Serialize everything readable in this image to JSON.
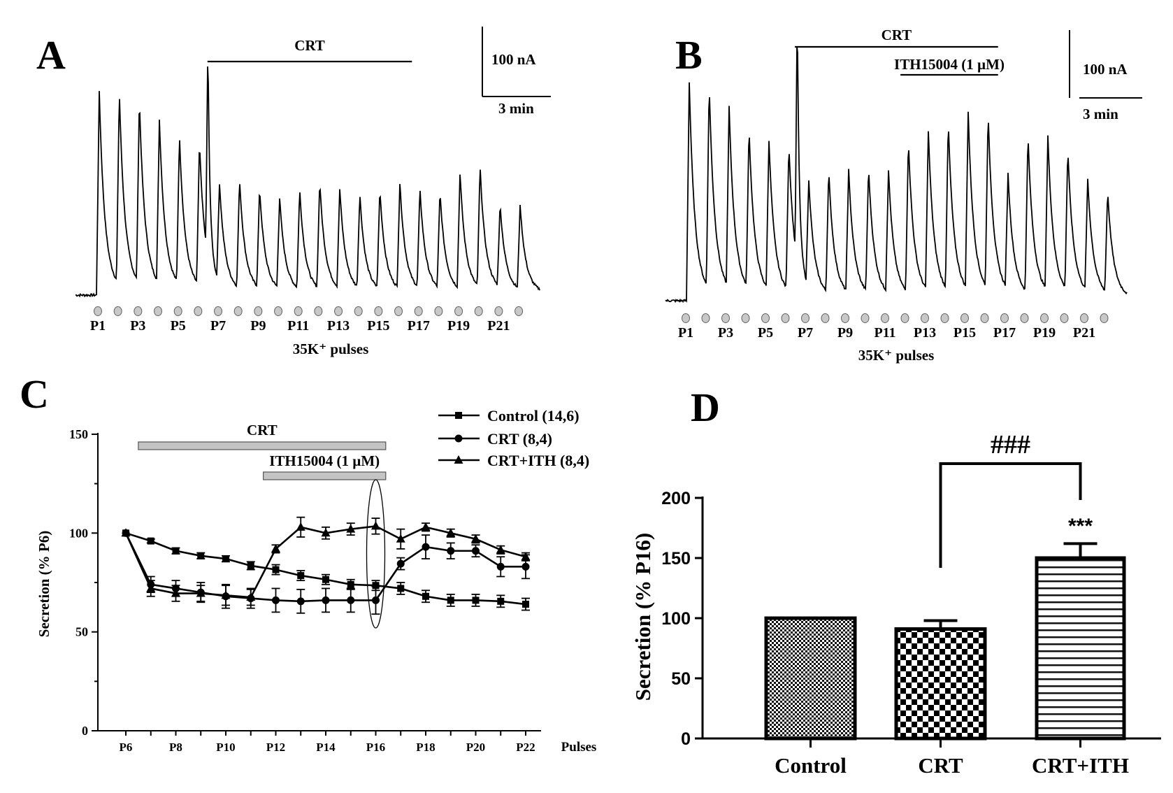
{
  "chart_data": [
    {
      "type": "line",
      "panel_label": "A",
      "description_kind": "amperometric trace",
      "treatment_bars": [
        {
          "label": "CRT",
          "from_pulse": 6.4,
          "to_pulse": 16.6
        }
      ],
      "scale_bar": {
        "y_label": "100 nA",
        "x_label": "3 min",
        "y_value_nA": 100
      },
      "pulse_labels": [
        "P1",
        "P3",
        "P5",
        "P7",
        "P9",
        "P11",
        "P13",
        "P15",
        "P17",
        "P19",
        "P21"
      ],
      "pulse_count": 22,
      "xlabel": "35K⁺ pulses",
      "peak_amplitudes_nA": [
        292,
        276,
        264,
        234,
        213,
        205,
        142,
        156,
        143,
        130,
        143,
        154,
        143,
        136,
        143,
        152,
        143,
        139,
        167,
        174,
        119,
        121
      ],
      "crt_application_spike_nA": 308
    },
    {
      "type": "line",
      "panel_label": "B",
      "description_kind": "amperometric trace",
      "treatment_bars": [
        {
          "label": "CRT",
          "from_pulse": 6.3,
          "to_pulse": 16.5
        },
        {
          "label": "ITH15004 (1 µM)",
          "from_pulse": 11.6,
          "to_pulse": 16.5
        }
      ],
      "scale_bar": {
        "y_label": "100 nA",
        "x_label": "3 min",
        "y_value_nA": 100
      },
      "pulse_labels": [
        "P1",
        "P3",
        "P5",
        "P7",
        "P9",
        "P11",
        "P13",
        "P15",
        "P17",
        "P19",
        "P21"
      ],
      "pulse_count": 22,
      "xlabel": "35K⁺ pulses",
      "peak_amplitudes_nA": [
        323,
        302,
        267,
        237,
        221,
        216,
        158,
        181,
        181,
        185,
        181,
        225,
        237,
        249,
        263,
        260,
        170,
        233,
        228,
        209,
        165,
        151
      ],
      "crt_application_spike_nA": 370
    },
    {
      "type": "line",
      "panel_label": "C",
      "xlabel": "Pulses",
      "ylabel": "Secretion (% P6)",
      "ylim": [
        0,
        150
      ],
      "yticks": [
        "0",
        "50",
        "100",
        "150"
      ],
      "x": [
        6,
        7,
        8,
        9,
        10,
        11,
        12,
        13,
        14,
        15,
        16,
        17,
        18,
        19,
        20,
        21,
        22
      ],
      "xtick_labels": [
        "P6",
        "P8",
        "P10",
        "P12",
        "P14",
        "P16",
        "P18",
        "P20",
        "P22"
      ],
      "treatment_bars": [
        {
          "label": "CRT",
          "from_pulse": 6.5,
          "to_pulse": 16.4
        },
        {
          "label": "ITH15004 (1 µM)",
          "from_pulse": 11.5,
          "to_pulse": 16.4
        }
      ],
      "highlight_pulse": 16,
      "legend_position": "top-right",
      "series": [
        {
          "name": "Control (14,6)",
          "marker": "square",
          "values": [
            100,
            96,
            91,
            88.5,
            87,
            83.5,
            81.5,
            78.5,
            76.5,
            74,
            73.5,
            72,
            68,
            66,
            66,
            65.5,
            64
          ],
          "errors": [
            0,
            1,
            1.5,
            1.5,
            1.5,
            2,
            2.5,
            2.5,
            2.5,
            2.5,
            2.5,
            3,
            3,
            3,
            3,
            3,
            3
          ]
        },
        {
          "name": "CRT (8,4)",
          "marker": "circle",
          "values": [
            100,
            74,
            72,
            70,
            68,
            67,
            66,
            65.5,
            66,
            66,
            66,
            84.5,
            93,
            91,
            91,
            83,
            83
          ],
          "errors": [
            0,
            4,
            4,
            5,
            6,
            5,
            6,
            6,
            6,
            6,
            7,
            3,
            6,
            4,
            3,
            5,
            6
          ]
        },
        {
          "name": "CRT+ITH (8,4)",
          "marker": "triangle",
          "values": [
            100,
            72,
            69.5,
            69.5,
            68.5,
            67.5,
            92,
            103,
            100,
            102,
            103.5,
            97,
            103,
            100,
            97,
            91.5,
            88
          ],
          "errors": [
            0,
            4,
            4,
            4,
            5,
            4,
            2,
            5,
            3,
            3,
            4,
            5,
            2,
            2,
            2,
            2,
            2
          ]
        }
      ]
    },
    {
      "type": "bar",
      "panel_label": "D",
      "ylabel": "Secretion (% P16)",
      "ylim": [
        0,
        200
      ],
      "yticks": [
        "0",
        "50",
        "100",
        "150",
        "200"
      ],
      "categories": [
        "Control",
        "CRT",
        "CRT+ITH"
      ],
      "values": [
        100,
        91,
        150
      ],
      "errors": [
        0,
        7,
        12
      ],
      "patterns": [
        "fine-checker",
        "coarse-checker",
        "horizontal-stripes"
      ],
      "annotations": {
        "bracket_label": "###",
        "bracket_between": [
          "CRT",
          "CRT+ITH"
        ],
        "bar_label": "***",
        "bar_label_on": "CRT+ITH"
      }
    }
  ]
}
